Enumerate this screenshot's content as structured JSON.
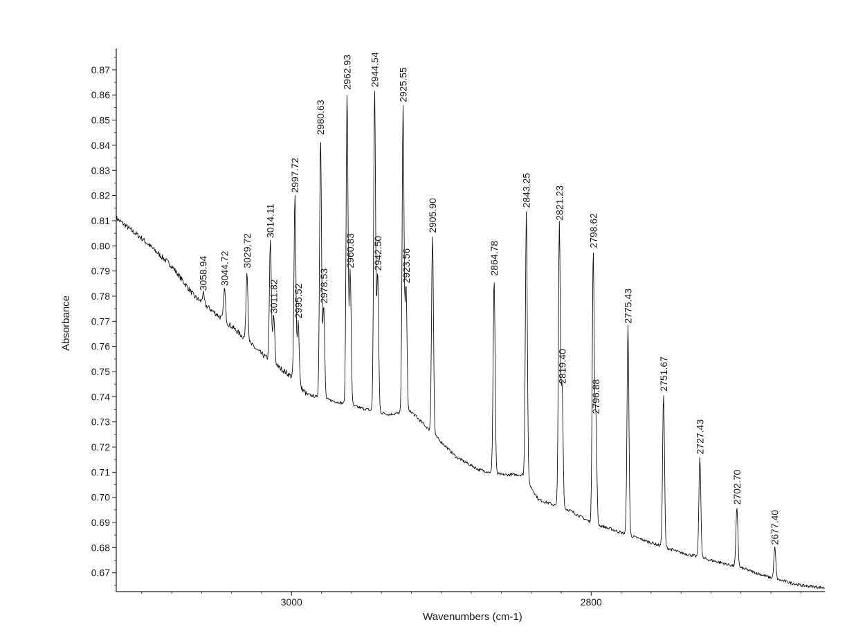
{
  "chart_data": {
    "type": "line",
    "title": "",
    "xlabel": "Wavenumbers (cm-1)",
    "ylabel": "Absorbance",
    "x_direction": "decreasing",
    "xlim": [
      3117,
      2644
    ],
    "ylim": [
      0.6625,
      0.8785
    ],
    "x_ticks": [
      3000,
      2800
    ],
    "x_tick_labels": [
      "3000",
      "2800"
    ],
    "y_ticks": [
      0.67,
      0.68,
      0.69,
      0.7,
      0.71,
      0.72,
      0.73,
      0.74,
      0.75,
      0.76,
      0.77,
      0.78,
      0.79,
      0.8,
      0.81,
      0.82,
      0.83,
      0.84,
      0.85,
      0.86,
      0.87
    ],
    "y_tick_labels": [
      "0.67",
      "0.68",
      "0.69",
      "0.70",
      "0.71",
      "0.72",
      "0.73",
      "0.74",
      "0.75",
      "0.76",
      "0.77",
      "0.78",
      "0.79",
      "0.80",
      "0.81",
      "0.82",
      "0.83",
      "0.84",
      "0.85",
      "0.86",
      "0.87"
    ],
    "baseline": [
      [
        3117,
        0.811
      ],
      [
        3100,
        0.803
      ],
      [
        3080,
        0.792
      ],
      [
        3065,
        0.78
      ],
      [
        3040,
        0.768
      ],
      [
        3020,
        0.757
      ],
      [
        3000,
        0.748
      ],
      [
        2990,
        0.741
      ],
      [
        2970,
        0.738
      ],
      [
        2950,
        0.735
      ],
      [
        2935,
        0.733
      ],
      [
        2920,
        0.734
      ],
      [
        2905,
        0.725
      ],
      [
        2890,
        0.716
      ],
      [
        2875,
        0.711
      ],
      [
        2860,
        0.709
      ],
      [
        2845,
        0.709
      ],
      [
        2835,
        0.699
      ],
      [
        2815,
        0.695
      ],
      [
        2800,
        0.69
      ],
      [
        2780,
        0.686
      ],
      [
        2760,
        0.682
      ],
      [
        2740,
        0.678
      ],
      [
        2720,
        0.675
      ],
      [
        2700,
        0.672
      ],
      [
        2680,
        0.668
      ],
      [
        2660,
        0.665
      ],
      [
        2644,
        0.664
      ]
    ],
    "peaks": [
      {
        "x": 3058.94,
        "y": 0.781,
        "label": "3058.94"
      },
      {
        "x": 3044.72,
        "y": 0.783,
        "label": "3044.72"
      },
      {
        "x": 3029.72,
        "y": 0.79,
        "label": "3029.72"
      },
      {
        "x": 3014.11,
        "y": 0.802,
        "label": "3014.11"
      },
      {
        "x": 3011.82,
        "y": 0.772,
        "label": "3011.82"
      },
      {
        "x": 2997.72,
        "y": 0.82,
        "label": "2997.72"
      },
      {
        "x": 2995.52,
        "y": 0.77,
        "label": "2995.52"
      },
      {
        "x": 2980.63,
        "y": 0.843,
        "label": "2980.63"
      },
      {
        "x": 2978.53,
        "y": 0.776,
        "label": "2978.53"
      },
      {
        "x": 2962.93,
        "y": 0.861,
        "label": "2962.93"
      },
      {
        "x": 2960.83,
        "y": 0.79,
        "label": "2960.83"
      },
      {
        "x": 2944.54,
        "y": 0.862,
        "label": "2944.54"
      },
      {
        "x": 2942.5,
        "y": 0.789,
        "label": "2942.50"
      },
      {
        "x": 2925.55,
        "y": 0.856,
        "label": "2925.55"
      },
      {
        "x": 2923.56,
        "y": 0.784,
        "label": "2923.56"
      },
      {
        "x": 2905.9,
        "y": 0.804,
        "label": "2905.90"
      },
      {
        "x": 2864.78,
        "y": 0.787,
        "label": "2864.78"
      },
      {
        "x": 2843.25,
        "y": 0.814,
        "label": "2843.25"
      },
      {
        "x": 2821.23,
        "y": 0.809,
        "label": "2821.23"
      },
      {
        "x": 2819.4,
        "y": 0.744,
        "label": "2819.40"
      },
      {
        "x": 2798.62,
        "y": 0.798,
        "label": "2798.62"
      },
      {
        "x": 2796.88,
        "y": 0.732,
        "label": "2796.88"
      },
      {
        "x": 2775.43,
        "y": 0.768,
        "label": "2775.43"
      },
      {
        "x": 2751.67,
        "y": 0.741,
        "label": "2751.67"
      },
      {
        "x": 2727.43,
        "y": 0.716,
        "label": "2727.43"
      },
      {
        "x": 2702.7,
        "y": 0.696,
        "label": "2702.70"
      },
      {
        "x": 2677.4,
        "y": 0.68,
        "label": "2677.40"
      }
    ]
  }
}
